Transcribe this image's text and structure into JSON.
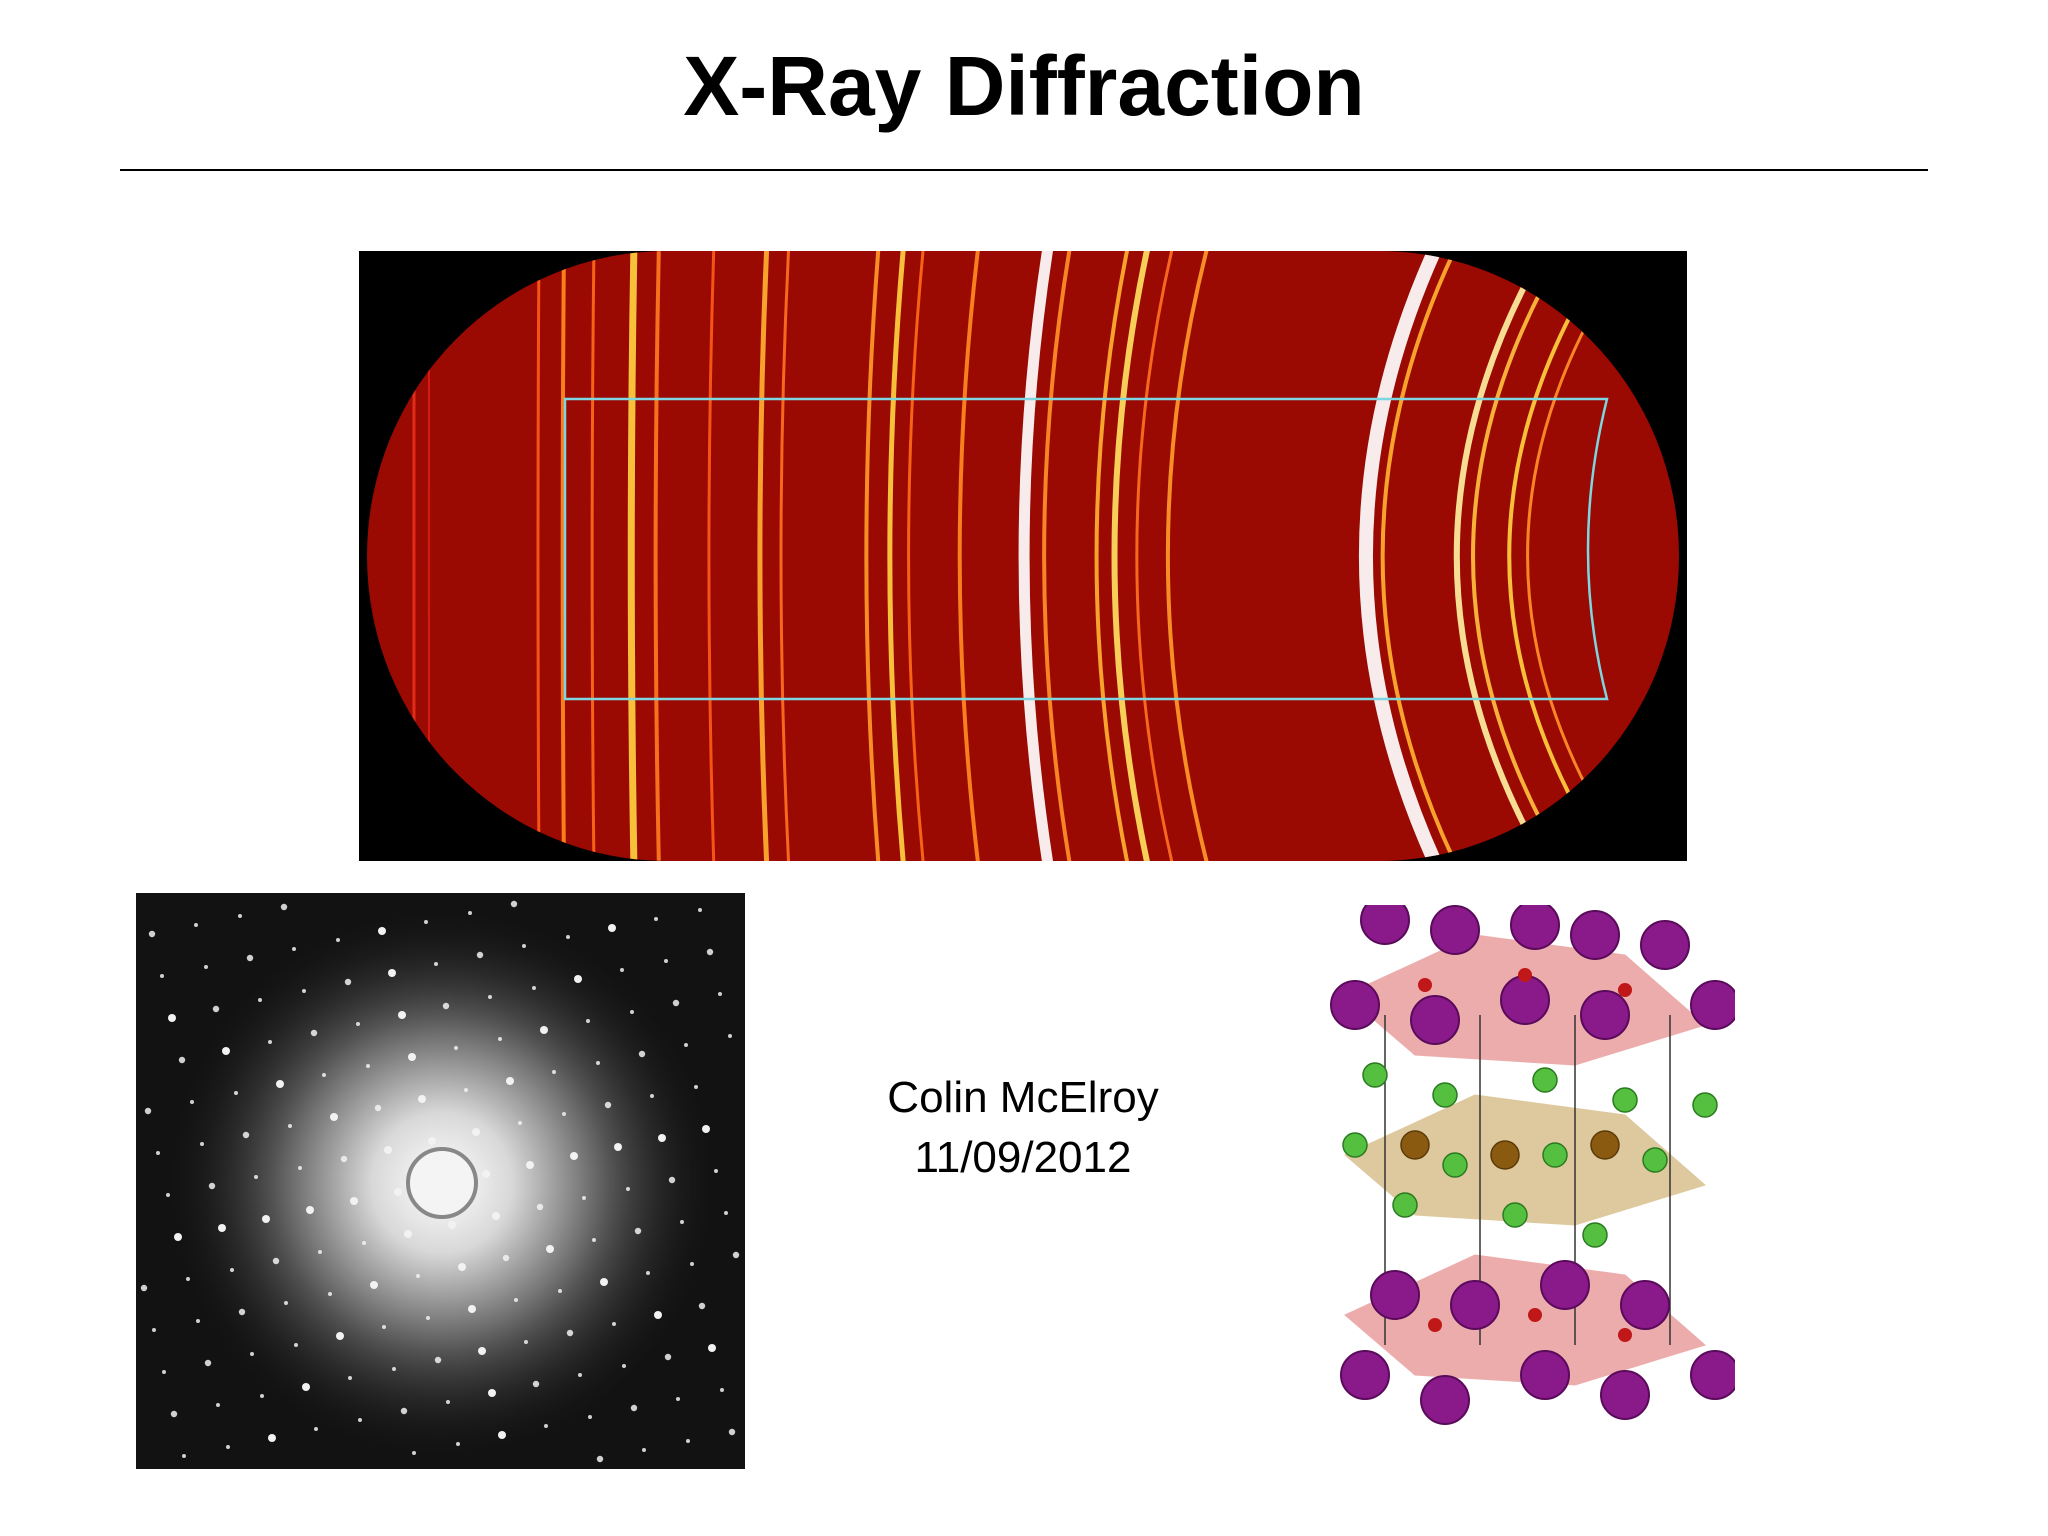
{
  "header": {
    "title": "X-Ray Diffraction"
  },
  "caption": {
    "author": "Colin McElroy",
    "date": "11/09/2012"
  }
}
